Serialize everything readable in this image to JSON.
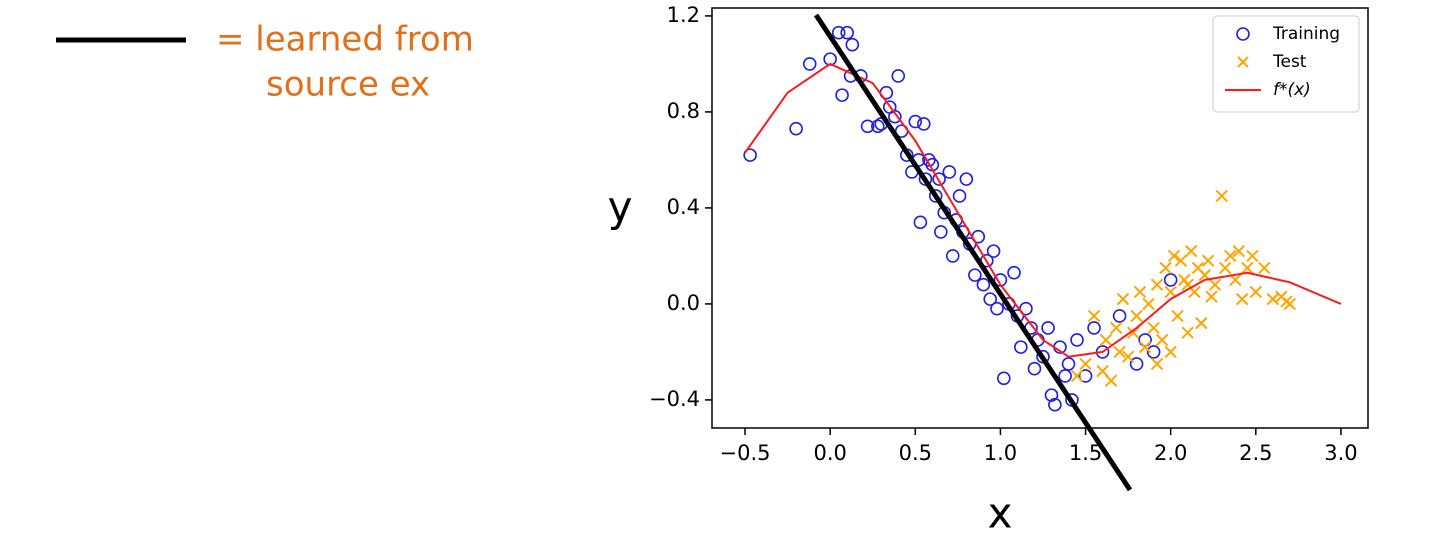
{
  "chart_data": {
    "type": "scatter",
    "x_label": "x",
    "y_label": "y",
    "xlim": [
      -0.694,
      3.159
    ],
    "ylim": [
      -0.517,
      1.233
    ],
    "xticks": [
      {
        "value": -0.5,
        "label": "−0.5"
      },
      {
        "value": 0,
        "label": "0.0"
      },
      {
        "value": 0.5,
        "label": "0.5"
      },
      {
        "value": 1,
        "label": "1.0"
      },
      {
        "value": 1.5,
        "label": "1.5"
      },
      {
        "value": 2,
        "label": "2.0"
      },
      {
        "value": 2.5,
        "label": "2.5"
      },
      {
        "value": 3,
        "label": "3.0"
      }
    ],
    "yticks": [
      {
        "value": -0.4,
        "label": "−0.4"
      },
      {
        "value": 0,
        "label": "0.0"
      },
      {
        "value": 0.4,
        "label": "0.4"
      },
      {
        "value": 0.8,
        "label": "0.8"
      },
      {
        "value": 1.2,
        "label": "1.2"
      }
    ],
    "legend": "upper right",
    "series": [
      {
        "name": "Training",
        "color": "#1f1fe6",
        "marker": "circle",
        "x": [
          -0.47,
          -0.2,
          -0.12,
          0.0,
          0.05,
          0.1,
          0.13,
          0.07,
          0.12,
          0.18,
          0.22,
          0.28,
          0.33,
          0.35,
          0.4,
          0.38,
          0.42,
          0.45,
          0.48,
          0.5,
          0.52,
          0.55,
          0.56,
          0.58,
          0.6,
          0.62,
          0.64,
          0.65,
          0.67,
          0.7,
          0.72,
          0.74,
          0.76,
          0.78,
          0.8,
          0.82,
          0.85,
          0.87,
          0.9,
          0.92,
          0.94,
          0.96,
          0.98,
          1.0,
          1.02,
          1.05,
          1.08,
          1.1,
          1.12,
          1.15,
          1.18,
          1.2,
          1.22,
          1.25,
          1.28,
          1.3,
          1.32,
          1.35,
          1.38,
          1.4,
          1.42,
          1.45,
          1.5,
          1.55,
          1.6,
          1.7,
          1.8,
          1.9,
          2.0,
          1.85,
          0.53,
          0.3
        ],
        "values": [
          0.62,
          0.73,
          1.0,
          1.02,
          1.13,
          1.13,
          1.08,
          0.87,
          0.95,
          0.95,
          0.74,
          0.74,
          0.88,
          0.82,
          0.95,
          0.78,
          0.72,
          0.62,
          0.55,
          0.76,
          0.6,
          0.75,
          0.52,
          0.6,
          0.58,
          0.45,
          0.52,
          0.3,
          0.38,
          0.55,
          0.2,
          0.35,
          0.45,
          0.3,
          0.52,
          0.25,
          0.12,
          0.28,
          0.08,
          0.18,
          0.02,
          0.22,
          -0.02,
          0.1,
          -0.31,
          0.0,
          0.13,
          -0.05,
          -0.18,
          -0.02,
          -0.1,
          -0.27,
          -0.15,
          -0.22,
          -0.1,
          -0.38,
          -0.42,
          -0.18,
          -0.3,
          -0.25,
          -0.4,
          -0.15,
          -0.3,
          -0.1,
          -0.2,
          -0.05,
          -0.25,
          -0.2,
          0.1,
          -0.15,
          0.34,
          0.75
        ]
      },
      {
        "name": "Test",
        "color": "#ffa500",
        "marker": "x",
        "x": [
          1.45,
          1.5,
          1.55,
          1.6,
          1.62,
          1.65,
          1.68,
          1.7,
          1.72,
          1.75,
          1.78,
          1.8,
          1.82,
          1.85,
          1.87,
          1.9,
          1.92,
          1.95,
          1.97,
          2.0,
          2.02,
          2.04,
          2.06,
          2.08,
          2.1,
          2.12,
          2.14,
          2.16,
          2.18,
          2.2,
          2.22,
          2.24,
          2.26,
          2.3,
          2.32,
          2.35,
          2.38,
          2.4,
          2.42,
          2.45,
          2.48,
          2.5,
          2.55,
          2.6,
          2.65,
          2.68,
          2.7,
          2.0,
          1.92,
          2.1
        ],
        "values": [
          -0.3,
          -0.25,
          -0.05,
          -0.28,
          -0.15,
          -0.32,
          -0.1,
          -0.2,
          0.02,
          -0.22,
          -0.12,
          -0.05,
          0.05,
          -0.18,
          0.0,
          -0.1,
          0.08,
          -0.15,
          0.15,
          0.05,
          0.2,
          -0.05,
          0.18,
          0.1,
          -0.12,
          0.22,
          0.05,
          0.15,
          -0.08,
          0.12,
          0.18,
          0.03,
          0.08,
          0.45,
          0.15,
          0.2,
          0.1,
          0.22,
          0.02,
          0.15,
          0.2,
          0.05,
          0.15,
          0.02,
          0.03,
          0.01,
          0.0,
          -0.2,
          -0.25,
          0.08
        ]
      },
      {
        "name": "f*(x)",
        "color": "#ff1a1a",
        "marker": "line",
        "x": [
          -0.5,
          -0.25,
          0,
          0.25,
          0.5,
          0.75,
          1.0,
          1.25,
          1.4,
          1.6,
          1.8,
          2.0,
          2.2,
          2.45,
          2.7,
          3.0
        ],
        "values": [
          0.63,
          0.88,
          1.0,
          0.92,
          0.68,
          0.38,
          0.08,
          -0.15,
          -0.22,
          -0.2,
          -0.1,
          0.02,
          0.1,
          0.13,
          0.09,
          0.0
        ]
      }
    ],
    "annotation": {
      "text": [
        "= learned from",
        "source ex"
      ],
      "color": "#e0701a",
      "line": {
        "color": "#000000",
        "x": [
          -0.083,
          1.761
        ],
        "values": [
          1.204,
          -0.775
        ]
      }
    }
  }
}
